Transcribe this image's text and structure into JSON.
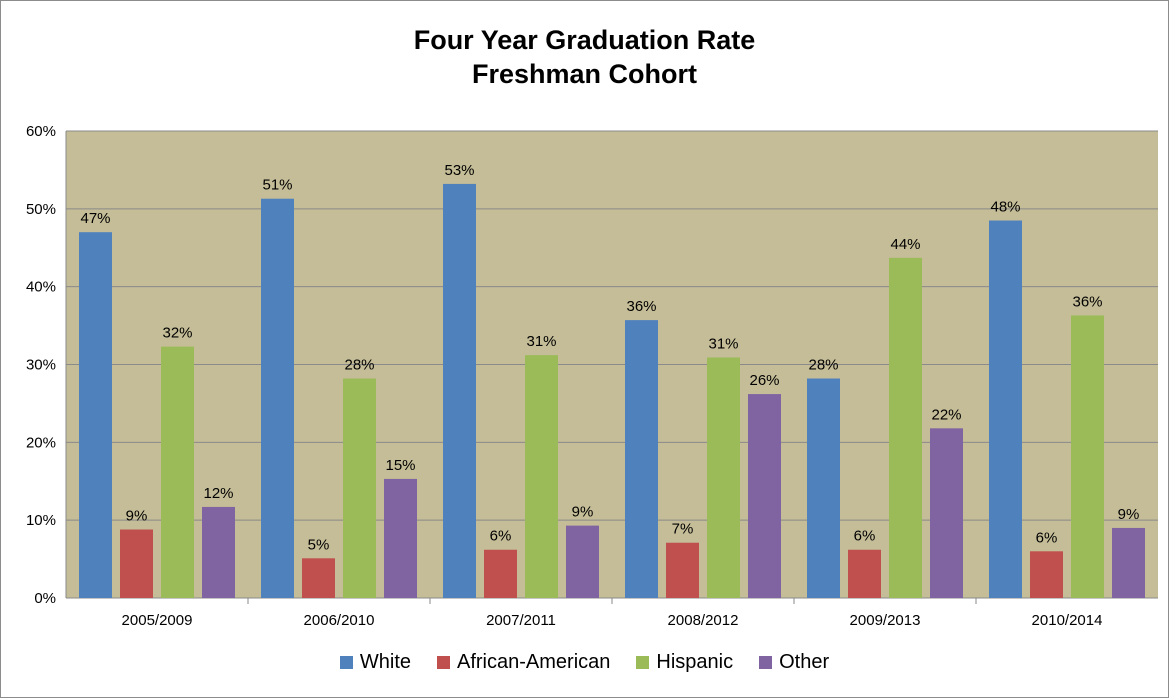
{
  "chart_data": {
    "type": "bar",
    "title": "Four Year Graduation Rate",
    "subtitle": "Freshman Cohort",
    "categories": [
      "2005/2009",
      "2006/2010",
      "2007/2011",
      "2008/2012",
      "2009/2013",
      "2010/2014"
    ],
    "series": [
      {
        "name": "White",
        "color": "#4f81bd",
        "values": [
          47,
          51.3,
          53.2,
          35.7,
          28.2,
          48.5
        ],
        "labels": [
          "47%",
          "51%",
          "53%",
          "36%",
          "28%",
          "48%"
        ]
      },
      {
        "name": "African-American",
        "color": "#c0504d",
        "values": [
          8.8,
          5.1,
          6.2,
          7.1,
          6.2,
          6
        ],
        "labels": [
          "9%",
          "5%",
          "6%",
          "7%",
          "6%",
          "6%"
        ]
      },
      {
        "name": "Hispanic",
        "color": "#9bbb59",
        "values": [
          32.3,
          28.2,
          31.2,
          30.9,
          43.7,
          36.3
        ],
        "labels": [
          "32%",
          "28%",
          "31%",
          "31%",
          "44%",
          "36%"
        ]
      },
      {
        "name": "Other",
        "color": "#8064a2",
        "values": [
          11.7,
          15.3,
          9.3,
          26.2,
          21.8,
          9
        ],
        "labels": [
          "12%",
          "15%",
          "9%",
          "26%",
          "22%",
          "9%"
        ]
      }
    ],
    "y_ticks": [
      "0%",
      "10%",
      "20%",
      "30%",
      "40%",
      "50%",
      "60%"
    ],
    "ylim": [
      0,
      60
    ],
    "grid": true,
    "legend_position": "bottom",
    "plot_background": "#c4bd97"
  }
}
